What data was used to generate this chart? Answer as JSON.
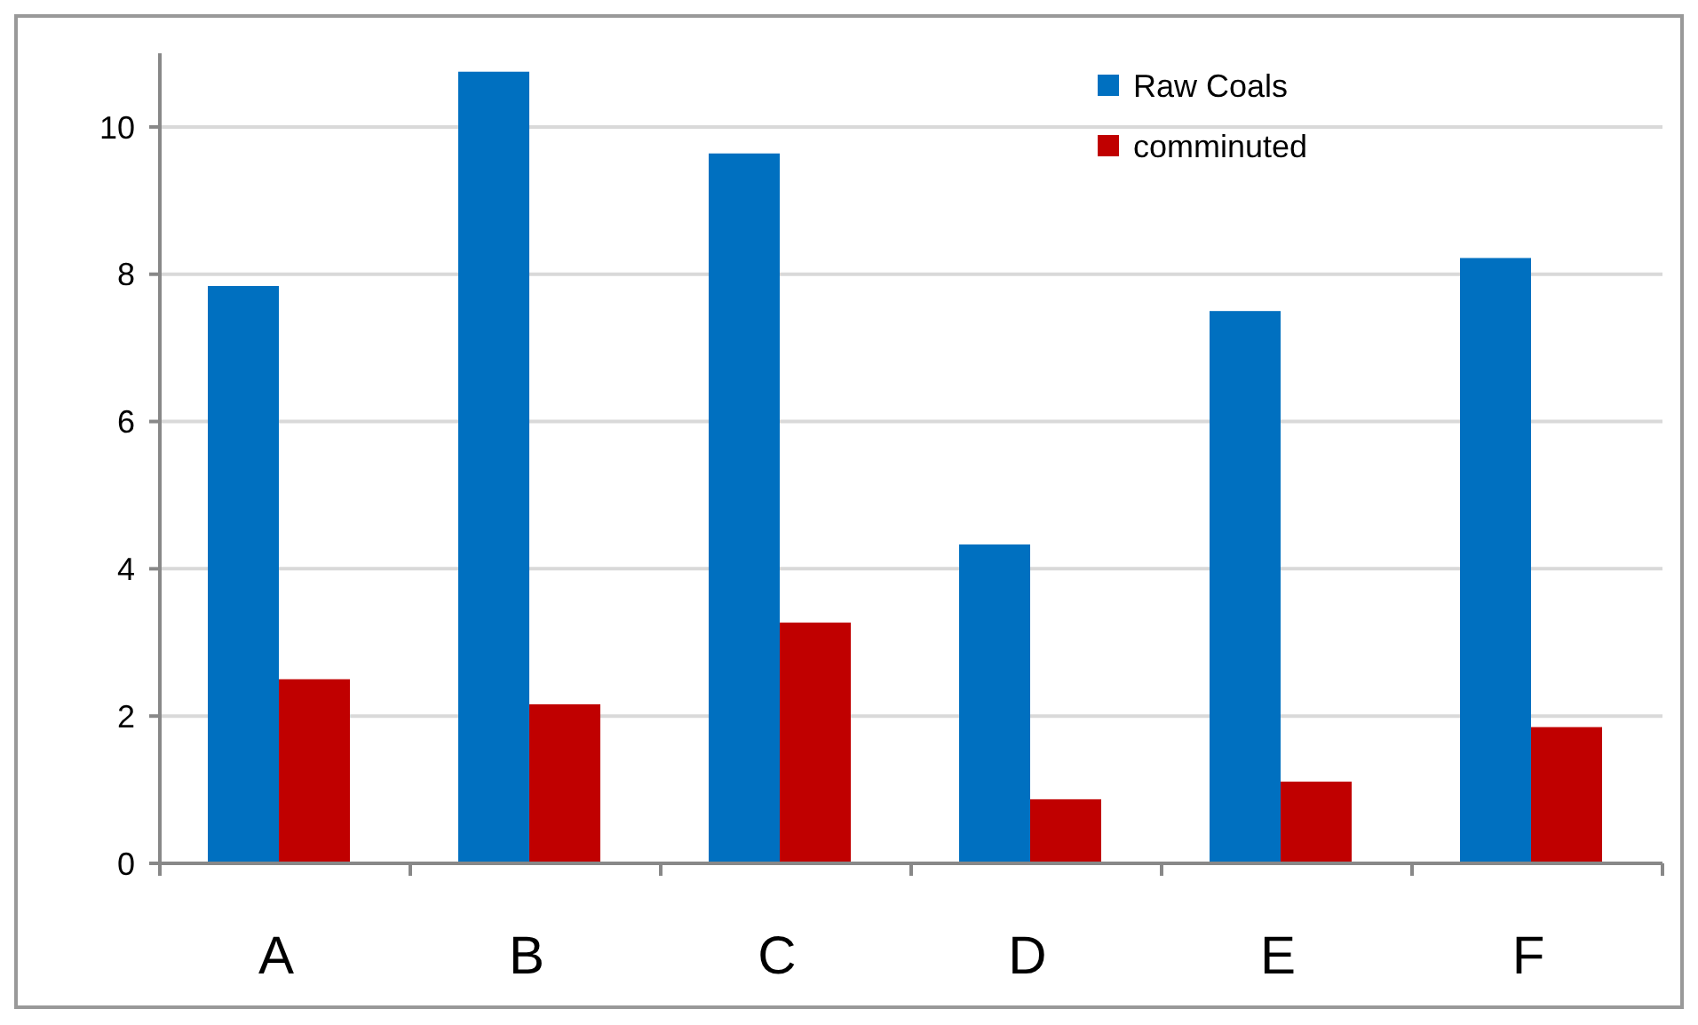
{
  "chart_data": {
    "type": "bar",
    "categories": [
      "A",
      "B",
      "C",
      "D",
      "E",
      "F"
    ],
    "series": [
      {
        "name": "Raw Coals",
        "color": "#0070c0",
        "values": [
          7.84,
          10.75,
          9.64,
          4.33,
          7.5,
          8.22
        ]
      },
      {
        "name": "comminuted",
        "color": "#c00000",
        "values": [
          2.5,
          2.16,
          3.27,
          0.87,
          1.11,
          1.85
        ]
      }
    ],
    "ylim": [
      0,
      11
    ],
    "yticks": [
      0,
      2,
      4,
      6,
      8,
      10
    ],
    "grid": "y",
    "legend": "top right"
  }
}
